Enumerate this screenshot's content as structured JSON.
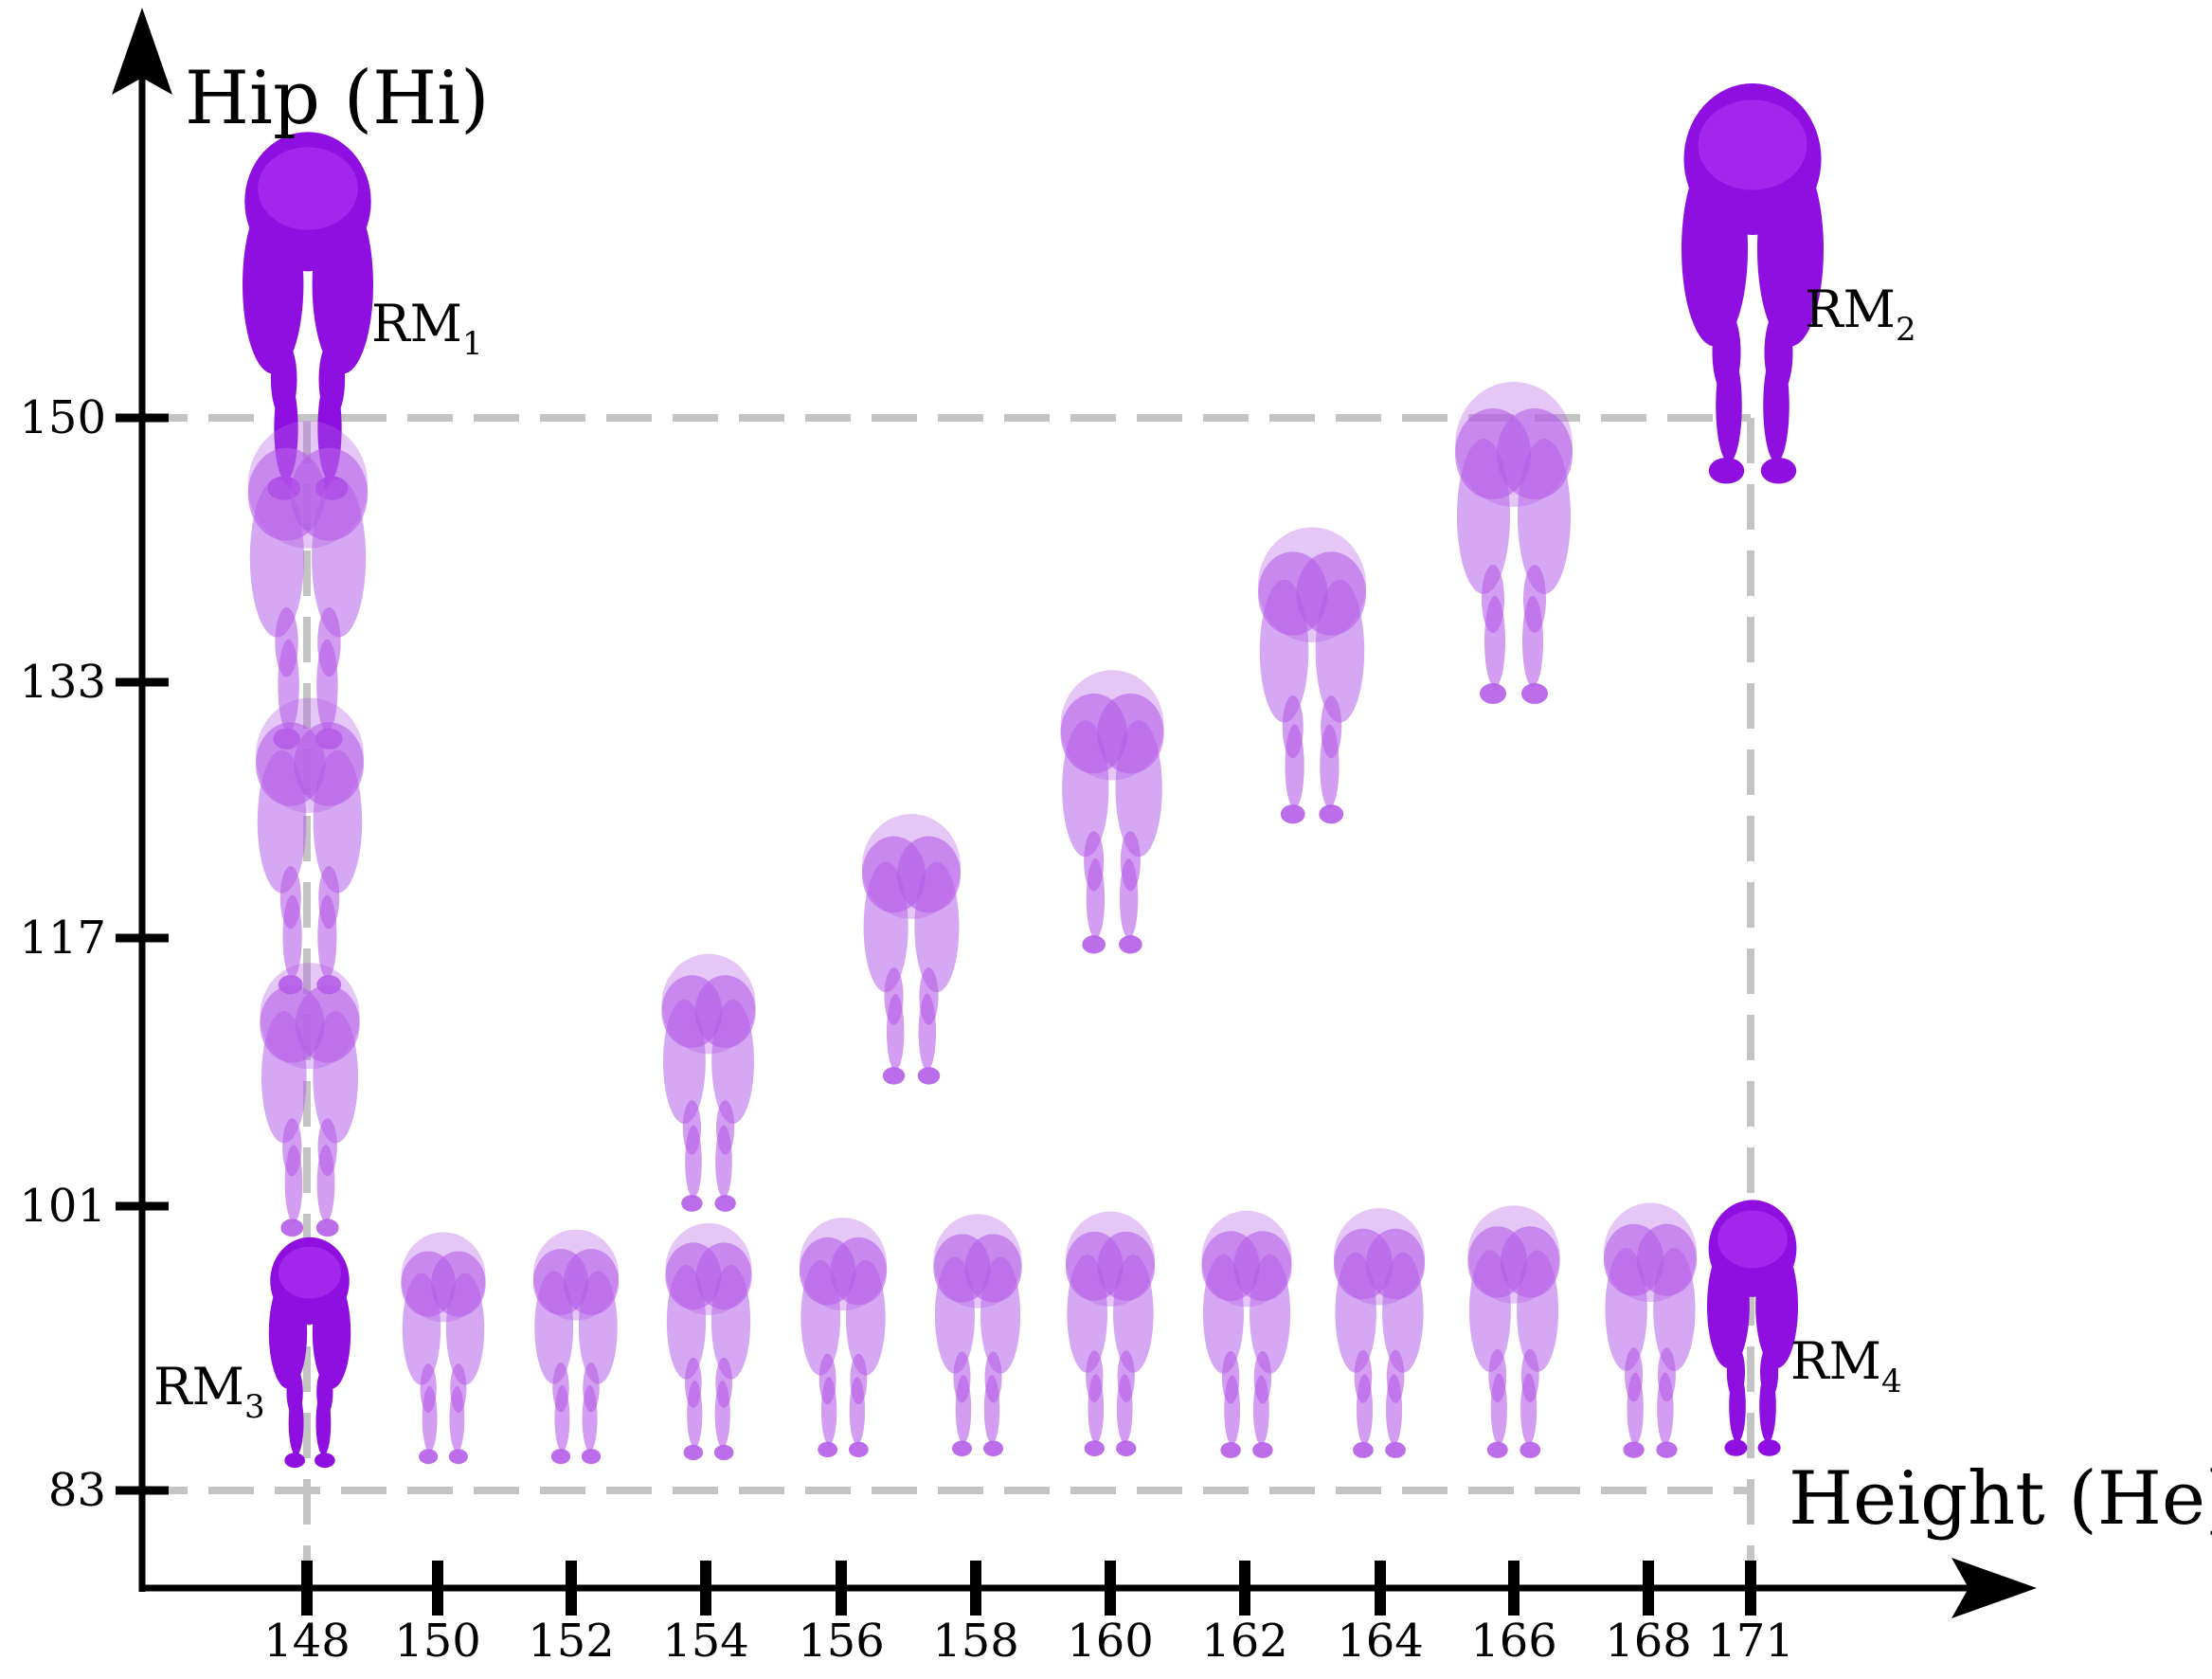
{
  "axes": {
    "x_title": "Height (He)",
    "y_title": "Hip (Hi)",
    "x_ticks": [
      "148",
      "150",
      "152",
      "154",
      "156",
      "158",
      "160",
      "162",
      "164",
      "166",
      "168",
      "171"
    ],
    "y_ticks": [
      "150",
      "133",
      "117",
      "101",
      "83"
    ]
  },
  "reference_models": [
    {
      "name": "RM",
      "sub": "1",
      "height": 148,
      "hip": 150
    },
    {
      "name": "RM",
      "sub": "2",
      "height": 171,
      "hip": 150
    },
    {
      "name": "RM",
      "sub": "3",
      "height": 148,
      "hip": 83
    },
    {
      "name": "RM",
      "sub": "4",
      "height": 171,
      "hip": 83
    }
  ],
  "colors": {
    "reference": "#8e0fe0",
    "interpolated": "#b55ee8",
    "guide": "#c4c4c4",
    "axis": "#000000"
  },
  "icons": {
    "figure": "lower-body-figure-icon"
  }
}
